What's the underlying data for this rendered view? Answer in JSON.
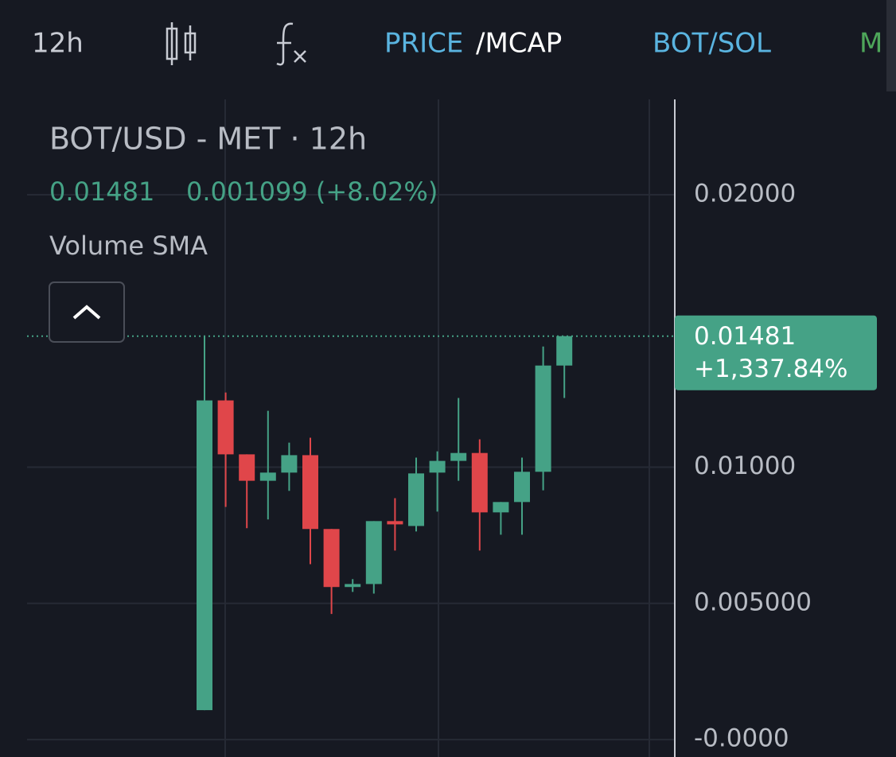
{
  "header": {
    "tabs": [
      "12h",
      "PRICE",
      "/MCAP",
      "BOT/SOL",
      "M"
    ]
  },
  "chart_data": {
    "type": "candlestick",
    "title": "BOT/USD - MET · 12h",
    "last_price": 0.01481,
    "change_text": "0.001099 (+8.02%)",
    "indicator": "Volume SMA",
    "price_tag_change": "+1,337.84%",
    "up_color": "#45a286",
    "down_color": "#e0464a",
    "grid": true,
    "ylim": [
      -0.00064,
      0.0235
    ],
    "yticks": [
      {
        "value": 0.02,
        "label": "0.02000"
      },
      {
        "value": 0.01,
        "label": "0.01000"
      },
      {
        "value": 0.005,
        "label": "0.005000"
      },
      {
        "value": 0,
        "label": "-0.0000"
      }
    ],
    "candles": [
      {
        "open": 0.00108,
        "high": 0.01481,
        "low": 0.00108,
        "close": 0.01245
      },
      {
        "open": 0.01245,
        "high": 0.01274,
        "low": 0.00854,
        "close": 0.01047
      },
      {
        "open": 0.01047,
        "high": 0.01047,
        "low": 0.00776,
        "close": 0.0095
      },
      {
        "open": 0.0095,
        "high": 0.01207,
        "low": 0.00808,
        "close": 0.0098
      },
      {
        "open": 0.0098,
        "high": 0.0109,
        "low": 0.00913,
        "close": 0.01044
      },
      {
        "open": 0.01044,
        "high": 0.01108,
        "low": 0.00644,
        "close": 0.00773
      },
      {
        "open": 0.00773,
        "high": 0.00773,
        "low": 0.00461,
        "close": 0.0056
      },
      {
        "open": 0.0056,
        "high": 0.00589,
        "low": 0.00542,
        "close": 0.00571
      },
      {
        "open": 0.00571,
        "high": 0.00802,
        "low": 0.00536,
        "close": 0.00802
      },
      {
        "open": 0.00802,
        "high": 0.00886,
        "low": 0.00694,
        "close": 0.0079
      },
      {
        "open": 0.00784,
        "high": 0.01035,
        "low": 0.00764,
        "close": 0.00977
      },
      {
        "open": 0.0098,
        "high": 0.01058,
        "low": 0.00837,
        "close": 0.01023
      },
      {
        "open": 0.01023,
        "high": 0.01254,
        "low": 0.0095,
        "close": 0.01052
      },
      {
        "open": 0.01052,
        "high": 0.01102,
        "low": 0.00694,
        "close": 0.00834
      },
      {
        "open": 0.00834,
        "high": 0.00872,
        "low": 0.00752,
        "close": 0.00872
      },
      {
        "open": 0.00872,
        "high": 0.01035,
        "low": 0.00752,
        "close": 0.00983
      },
      {
        "open": 0.00983,
        "high": 0.01443,
        "low": 0.00915,
        "close": 0.01373
      },
      {
        "open": 0.01373,
        "high": 0.01481,
        "low": 0.01254,
        "close": 0.01481
      }
    ]
  }
}
